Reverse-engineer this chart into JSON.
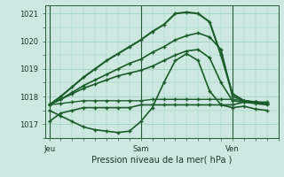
{
  "xlabel": "Pression niveau de la mer( hPa )",
  "bg_color": "#cce8e0",
  "grid_color": "#99ccbb",
  "line_color": "#1a5c2a",
  "ylim": [
    1016.5,
    1021.3
  ],
  "xtick_labels": [
    "Jeu",
    "Sam",
    "Ven"
  ],
  "xtick_positions": [
    0,
    48,
    96
  ],
  "ytick_values": [
    1017,
    1018,
    1019,
    1020,
    1021
  ],
  "vlines": [
    0,
    48,
    96
  ],
  "xlim": [
    -2,
    120
  ],
  "series": [
    {
      "x": [
        0,
        6,
        12,
        18,
        24,
        30,
        36,
        42,
        48,
        54,
        60,
        66,
        72,
        78,
        84,
        90,
        96,
        102,
        108,
        114
      ],
      "y": [
        1017.1,
        1017.4,
        1017.5,
        1017.6,
        1017.6,
        1017.6,
        1017.6,
        1017.6,
        1017.7,
        1017.7,
        1017.7,
        1017.7,
        1017.7,
        1017.7,
        1017.7,
        1017.7,
        1017.7,
        1017.8,
        1017.8,
        1017.8
      ],
      "lw": 1.2
    },
    {
      "x": [
        0,
        6,
        12,
        18,
        24,
        30,
        36,
        42,
        48,
        54,
        60,
        66,
        72,
        78,
        84,
        90,
        96,
        102,
        108,
        114
      ],
      "y": [
        1017.5,
        1017.3,
        1017.1,
        1016.9,
        1016.8,
        1016.75,
        1016.7,
        1016.75,
        1017.1,
        1017.6,
        1018.5,
        1019.3,
        1019.55,
        1019.3,
        1018.2,
        1017.7,
        1017.6,
        1017.65,
        1017.55,
        1017.5
      ],
      "lw": 1.2
    },
    {
      "x": [
        0,
        6,
        12,
        18,
        24,
        30,
        36,
        42,
        48,
        54,
        60,
        66,
        72,
        78,
        84,
        90,
        96,
        102,
        108,
        114
      ],
      "y": [
        1017.7,
        1018.0,
        1018.35,
        1018.7,
        1019.0,
        1019.3,
        1019.55,
        1019.8,
        1020.05,
        1020.35,
        1020.6,
        1021.0,
        1021.05,
        1021.0,
        1020.7,
        1019.5,
        1018.1,
        1017.85,
        1017.8,
        1017.75
      ],
      "lw": 1.5
    },
    {
      "x": [
        0,
        6,
        12,
        18,
        24,
        30,
        36,
        42,
        48,
        54,
        60,
        66,
        72,
        78,
        84,
        90,
        96,
        102,
        108,
        114
      ],
      "y": [
        1017.7,
        1017.9,
        1018.15,
        1018.4,
        1018.6,
        1018.8,
        1019.0,
        1019.2,
        1019.35,
        1019.6,
        1019.8,
        1020.05,
        1020.2,
        1020.3,
        1020.15,
        1019.7,
        1018.0,
        1017.85,
        1017.8,
        1017.75
      ],
      "lw": 1.2
    },
    {
      "x": [
        0,
        6,
        12,
        18,
        24,
        30,
        36,
        42,
        48,
        54,
        60,
        66,
        72,
        78,
        84,
        90,
        96,
        102,
        108,
        114
      ],
      "y": [
        1017.7,
        1017.9,
        1018.1,
        1018.3,
        1018.45,
        1018.6,
        1018.75,
        1018.85,
        1018.95,
        1019.1,
        1019.3,
        1019.5,
        1019.65,
        1019.7,
        1019.4,
        1018.5,
        1017.85,
        1017.8,
        1017.75,
        1017.7
      ],
      "lw": 1.2
    },
    {
      "x": [
        0,
        6,
        12,
        18,
        24,
        30,
        36,
        42,
        48,
        54,
        60,
        66,
        72,
        78,
        84,
        90,
        96,
        102,
        108,
        114
      ],
      "y": [
        1017.7,
        1017.75,
        1017.8,
        1017.85,
        1017.85,
        1017.85,
        1017.85,
        1017.85,
        1017.85,
        1017.9,
        1017.9,
        1017.9,
        1017.9,
        1017.9,
        1017.9,
        1017.9,
        1017.9,
        1017.85,
        1017.8,
        1017.75
      ],
      "lw": 1.0
    }
  ]
}
